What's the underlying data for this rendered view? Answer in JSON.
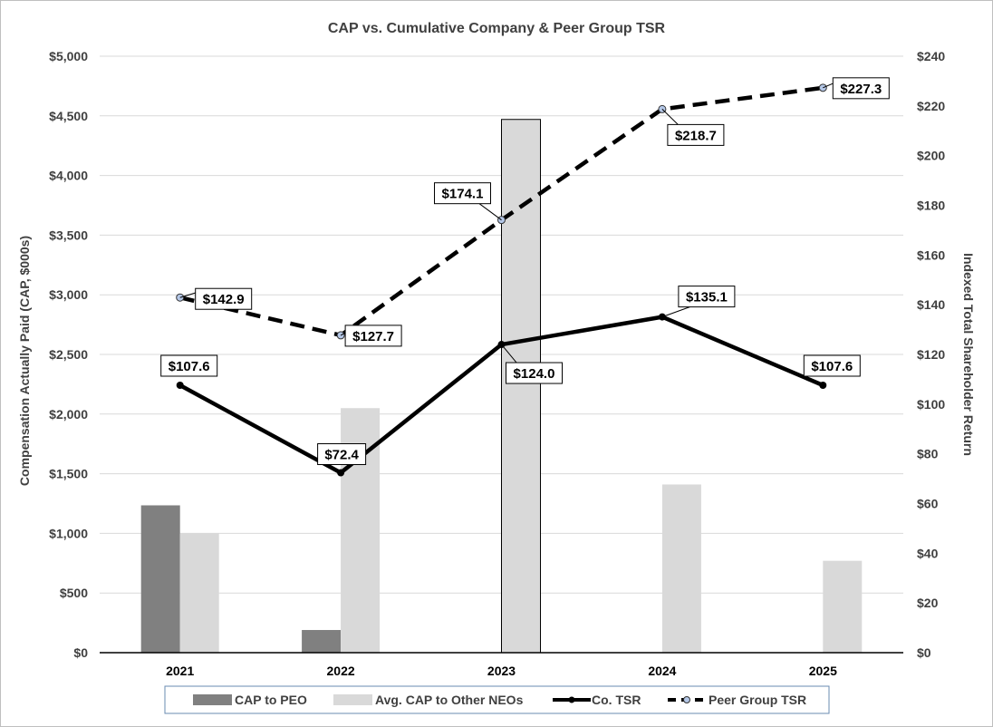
{
  "chart_data": {
    "type": "bar",
    "title": "CAP vs. Cumulative Company & Peer Group TSR",
    "categories": [
      "2021",
      "2022",
      "2023",
      "2024",
      "2025"
    ],
    "y_left": {
      "label": "Compensation Actually Paid  (CAP, $000s)",
      "range": [
        0,
        5000
      ],
      "ticks": [
        "$0",
        "$500",
        "$1,000",
        "$1,500",
        "$2,000",
        "$2,500",
        "$3,000",
        "$3,500",
        "$4,000",
        "$4,500",
        "$5,000"
      ]
    },
    "y_right": {
      "label": "Indexed Total Shareholder Return",
      "range": [
        0,
        240
      ],
      "ticks": [
        "$0",
        "$20",
        "$40",
        "$60",
        "$80",
        "$100",
        "$120",
        "$140",
        "$160",
        "$180",
        "$200",
        "$220",
        "$240"
      ]
    },
    "grid": true,
    "legend_position": "bottom",
    "bar_series": [
      {
        "name": "CAP to PEO",
        "color": "#808080",
        "values": [
          1235,
          190,
          0,
          0,
          0
        ]
      },
      {
        "name": "Avg. CAP to Other NEOs",
        "color": "#d9d9d9",
        "values": [
          1000,
          2050,
          4470,
          1410,
          770
        ]
      }
    ],
    "line_series": [
      {
        "name": "Co. TSR",
        "color": "#000000",
        "style": "solid",
        "axis": "right",
        "values": [
          107.6,
          72.4,
          124.0,
          135.1,
          107.6
        ],
        "labels": [
          "$107.6",
          "$72.4",
          "$124.0",
          "$135.1",
          "$107.6"
        ]
      },
      {
        "name": "Peer Group TSR",
        "color": "#000000",
        "style": "dashed",
        "marker": "#b4c7e7",
        "axis": "right",
        "values": [
          142.9,
          127.7,
          174.1,
          218.7,
          227.3
        ],
        "labels": [
          "$142.9",
          "$127.7",
          "$174.1",
          "$218.7",
          "$227.3"
        ]
      }
    ]
  }
}
